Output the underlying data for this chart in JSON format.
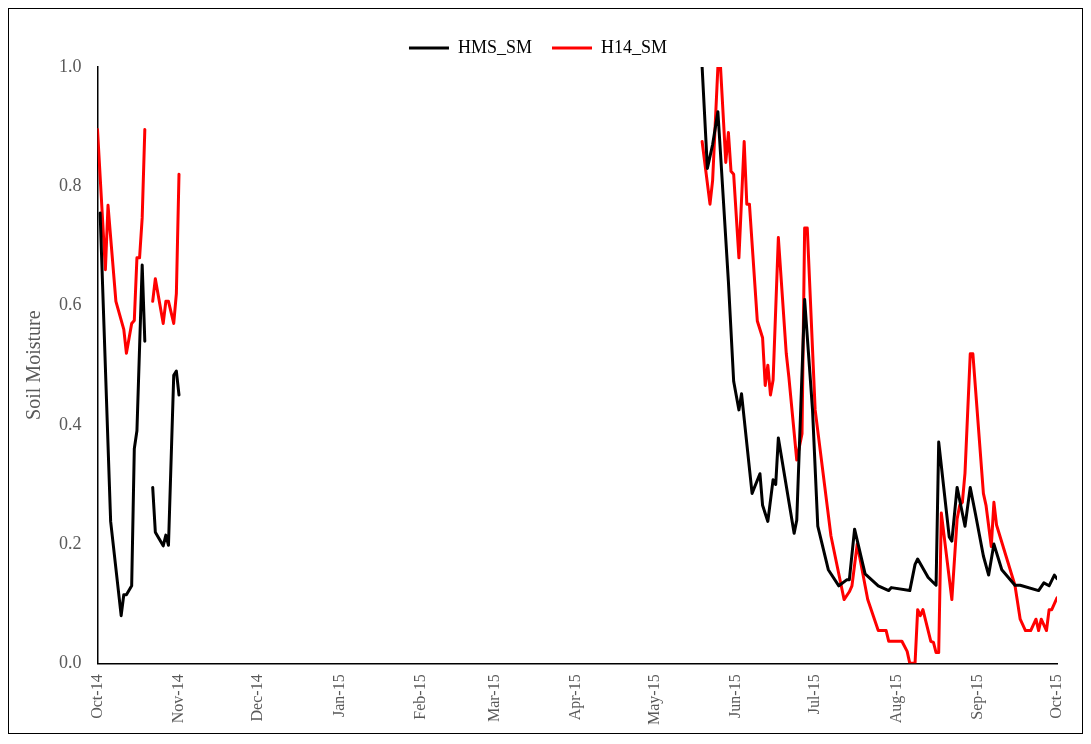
{
  "chart_data": {
    "type": "line",
    "ylabel": "Soil Moisture",
    "legend": "top",
    "grid": false,
    "marker": "none",
    "line_style": "solid",
    "xlim": [
      "2014-10-01",
      "2015-10-01"
    ],
    "xticks": [
      {
        "value": "2014-10-01",
        "label": "Oct-14"
      },
      {
        "value": "2014-11-01",
        "label": "Nov-14"
      },
      {
        "value": "2014-12-01",
        "label": "Dec-14"
      },
      {
        "value": "2015-01-01",
        "label": "Jan-15"
      },
      {
        "value": "2015-02-01",
        "label": "Feb-15"
      },
      {
        "value": "2015-03-01",
        "label": "Mar-15"
      },
      {
        "value": "2015-04-01",
        "label": "Apr-15"
      },
      {
        "value": "2015-05-01",
        "label": "May-15"
      },
      {
        "value": "2015-06-01",
        "label": "Jun-15"
      },
      {
        "value": "2015-07-01",
        "label": "Jul-15"
      },
      {
        "value": "2015-08-01",
        "label": "Aug-15"
      },
      {
        "value": "2015-09-01",
        "label": "Sep-15"
      },
      {
        "value": "2015-10-01",
        "label": "Oct-15"
      }
    ],
    "ylim": [
      0,
      1
    ],
    "yticks": [
      {
        "value": 0,
        "label": "0.0"
      },
      {
        "value": 0.2,
        "label": "0.2"
      },
      {
        "value": 0.4,
        "label": "0.4"
      },
      {
        "value": 0.6,
        "label": "0.6"
      },
      {
        "value": 0.8,
        "label": "0.8"
      },
      {
        "value": 1,
        "label": "1.0"
      }
    ],
    "series": [
      {
        "name": "HMS_SM",
        "color": "#000000",
        "x": [
          "2014-10-02",
          "2014-10-06",
          "2014-10-10",
          "2014-10-11",
          "2014-10-12",
          "2014-10-14",
          "2014-10-15",
          "2014-10-16",
          "2014-10-18",
          "2014-10-19",
          "2014-10-20",
          "2014-10-22",
          "2014-10-23",
          "2014-10-26",
          "2014-10-27",
          "2014-10-28",
          "2014-10-30",
          "2014-10-31",
          "2014-11-01",
          "2015-03-01",
          "2015-05-19",
          "2015-05-21",
          "2015-05-23",
          "2015-05-25",
          "2015-05-26",
          "2015-05-29",
          "2015-05-31",
          "2015-06-02",
          "2015-06-03",
          "2015-06-07",
          "2015-06-10",
          "2015-06-11",
          "2015-06-13",
          "2015-06-15",
          "2015-06-16",
          "2015-06-17",
          "2015-06-23",
          "2015-06-24",
          "2015-06-27",
          "2015-06-30",
          "2015-07-02",
          "2015-07-06",
          "2015-07-10",
          "2015-07-13",
          "2015-07-14",
          "2015-07-16",
          "2015-07-20",
          "2015-07-25",
          "2015-07-29",
          "2015-07-30",
          "2015-08-06",
          "2015-08-08",
          "2015-08-09",
          "2015-08-13",
          "2015-08-16",
          "2015-08-17",
          "2015-08-21",
          "2015-08-22",
          "2015-08-24",
          "2015-08-27",
          "2015-08-29",
          "2015-08-31",
          "2015-09-03",
          "2015-09-05",
          "2015-09-07",
          "2015-09-10",
          "2015-09-15",
          "2015-09-17",
          "2015-09-24",
          "2015-09-26",
          "2015-09-28",
          "2015-09-30",
          "2015-10-01"
        ],
        "values": [
          0.755,
          0.238,
          0.08,
          0.115,
          0.115,
          0.13,
          0.36,
          0.39,
          0.668,
          0.54,
          null,
          0.295,
          0.22,
          0.197,
          0.215,
          0.198,
          0.483,
          0.49,
          0.45,
          null,
          1.0,
          0.83,
          0.87,
          0.925,
          0.855,
          0.64,
          0.473,
          0.425,
          0.452,
          0.285,
          0.318,
          0.265,
          0.238,
          0.308,
          0.3,
          0.378,
          0.218,
          0.24,
          0.61,
          0.425,
          0.23,
          0.157,
          0.13,
          0.14,
          0.14,
          0.225,
          0.15,
          0.13,
          0.122,
          0.127,
          0.122,
          0.166,
          0.175,
          0.144,
          0.131,
          0.371,
          0.212,
          0.205,
          0.295,
          0.23,
          0.295,
          0.25,
          0.18,
          0.148,
          0.2,
          0.157,
          0.131,
          0.131,
          0.122,
          0.135,
          0.13,
          0.148,
          0.142
        ]
      },
      {
        "name": "H14_SM",
        "color": "#ff0000",
        "x": [
          "2014-10-01",
          "2014-10-04",
          "2014-10-05",
          "2014-10-08",
          "2014-10-11",
          "2014-10-12",
          "2014-10-14",
          "2014-10-15",
          "2014-10-16",
          "2014-10-17",
          "2014-10-18",
          "2014-10-19",
          "2014-10-20",
          "2014-10-22",
          "2014-10-23",
          "2014-10-26",
          "2014-10-27",
          "2014-10-28",
          "2014-10-30",
          "2014-10-31",
          "2014-11-01",
          "2015-03-01",
          "2015-05-19",
          "2015-05-22",
          "2015-05-23",
          "2015-05-25",
          "2015-05-26",
          "2015-05-28",
          "2015-05-29",
          "2015-05-30",
          "2015-05-31",
          "2015-06-02",
          "2015-06-04",
          "2015-06-05",
          "2015-06-06",
          "2015-06-09",
          "2015-06-11",
          "2015-06-12",
          "2015-06-13",
          "2015-06-14",
          "2015-06-15",
          "2015-06-17",
          "2015-06-20",
          "2015-06-21",
          "2015-06-24",
          "2015-06-26",
          "2015-06-27",
          "2015-06-28",
          "2015-07-01",
          "2015-07-07",
          "2015-07-12",
          "2015-07-14",
          "2015-07-15",
          "2015-07-17",
          "2015-07-21",
          "2015-07-25",
          "2015-07-28",
          "2015-07-29",
          "2015-08-03",
          "2015-08-05",
          "2015-08-06",
          "2015-08-08",
          "2015-08-09",
          "2015-08-10",
          "2015-08-11",
          "2015-08-14",
          "2015-08-15",
          "2015-08-16",
          "2015-08-17",
          "2015-08-18",
          "2015-08-22",
          "2015-08-24",
          "2015-08-25",
          "2015-08-26",
          "2015-08-27",
          "2015-08-29",
          "2015-08-30",
          "2015-09-03",
          "2015-09-04",
          "2015-09-06",
          "2015-09-07",
          "2015-09-08",
          "2015-09-15",
          "2015-09-17",
          "2015-09-19",
          "2015-09-21",
          "2015-09-23",
          "2015-09-24",
          "2015-09-25",
          "2015-09-27",
          "2015-09-28",
          "2015-09-29",
          "2015-10-01"
        ],
        "values": [
          0.895,
          0.66,
          0.768,
          0.607,
          0.56,
          0.52,
          0.57,
          0.575,
          0.68,
          0.68,
          0.747,
          0.895,
          null,
          0.607,
          0.645,
          0.57,
          0.607,
          0.607,
          0.57,
          0.62,
          0.82,
          null,
          0.875,
          0.77,
          0.81,
          1.0,
          1.0,
          0.84,
          0.89,
          0.825,
          0.82,
          0.68,
          0.875,
          0.77,
          0.77,
          0.574,
          0.546,
          0.466,
          0.5,
          0.45,
          0.475,
          0.714,
          0.52,
          0.48,
          0.341,
          0.385,
          0.73,
          0.73,
          0.425,
          0.214,
          0.107,
          0.12,
          0.13,
          0.2,
          0.107,
          0.055,
          0.055,
          0.037,
          0.037,
          0.02,
          0,
          0,
          0.09,
          0.08,
          0.09,
          0.037,
          0.035,
          0.018,
          0.018,
          0.252,
          0.107,
          0.242,
          0.265,
          0.27,
          0.319,
          0.519,
          0.519,
          0.285,
          0.265,
          0.196,
          0.27,
          0.232,
          0.131,
          0.074,
          0.055,
          0.055,
          0.074,
          0.055,
          0.074,
          0.055,
          0.09,
          0.09,
          0.11
        ]
      }
    ]
  }
}
